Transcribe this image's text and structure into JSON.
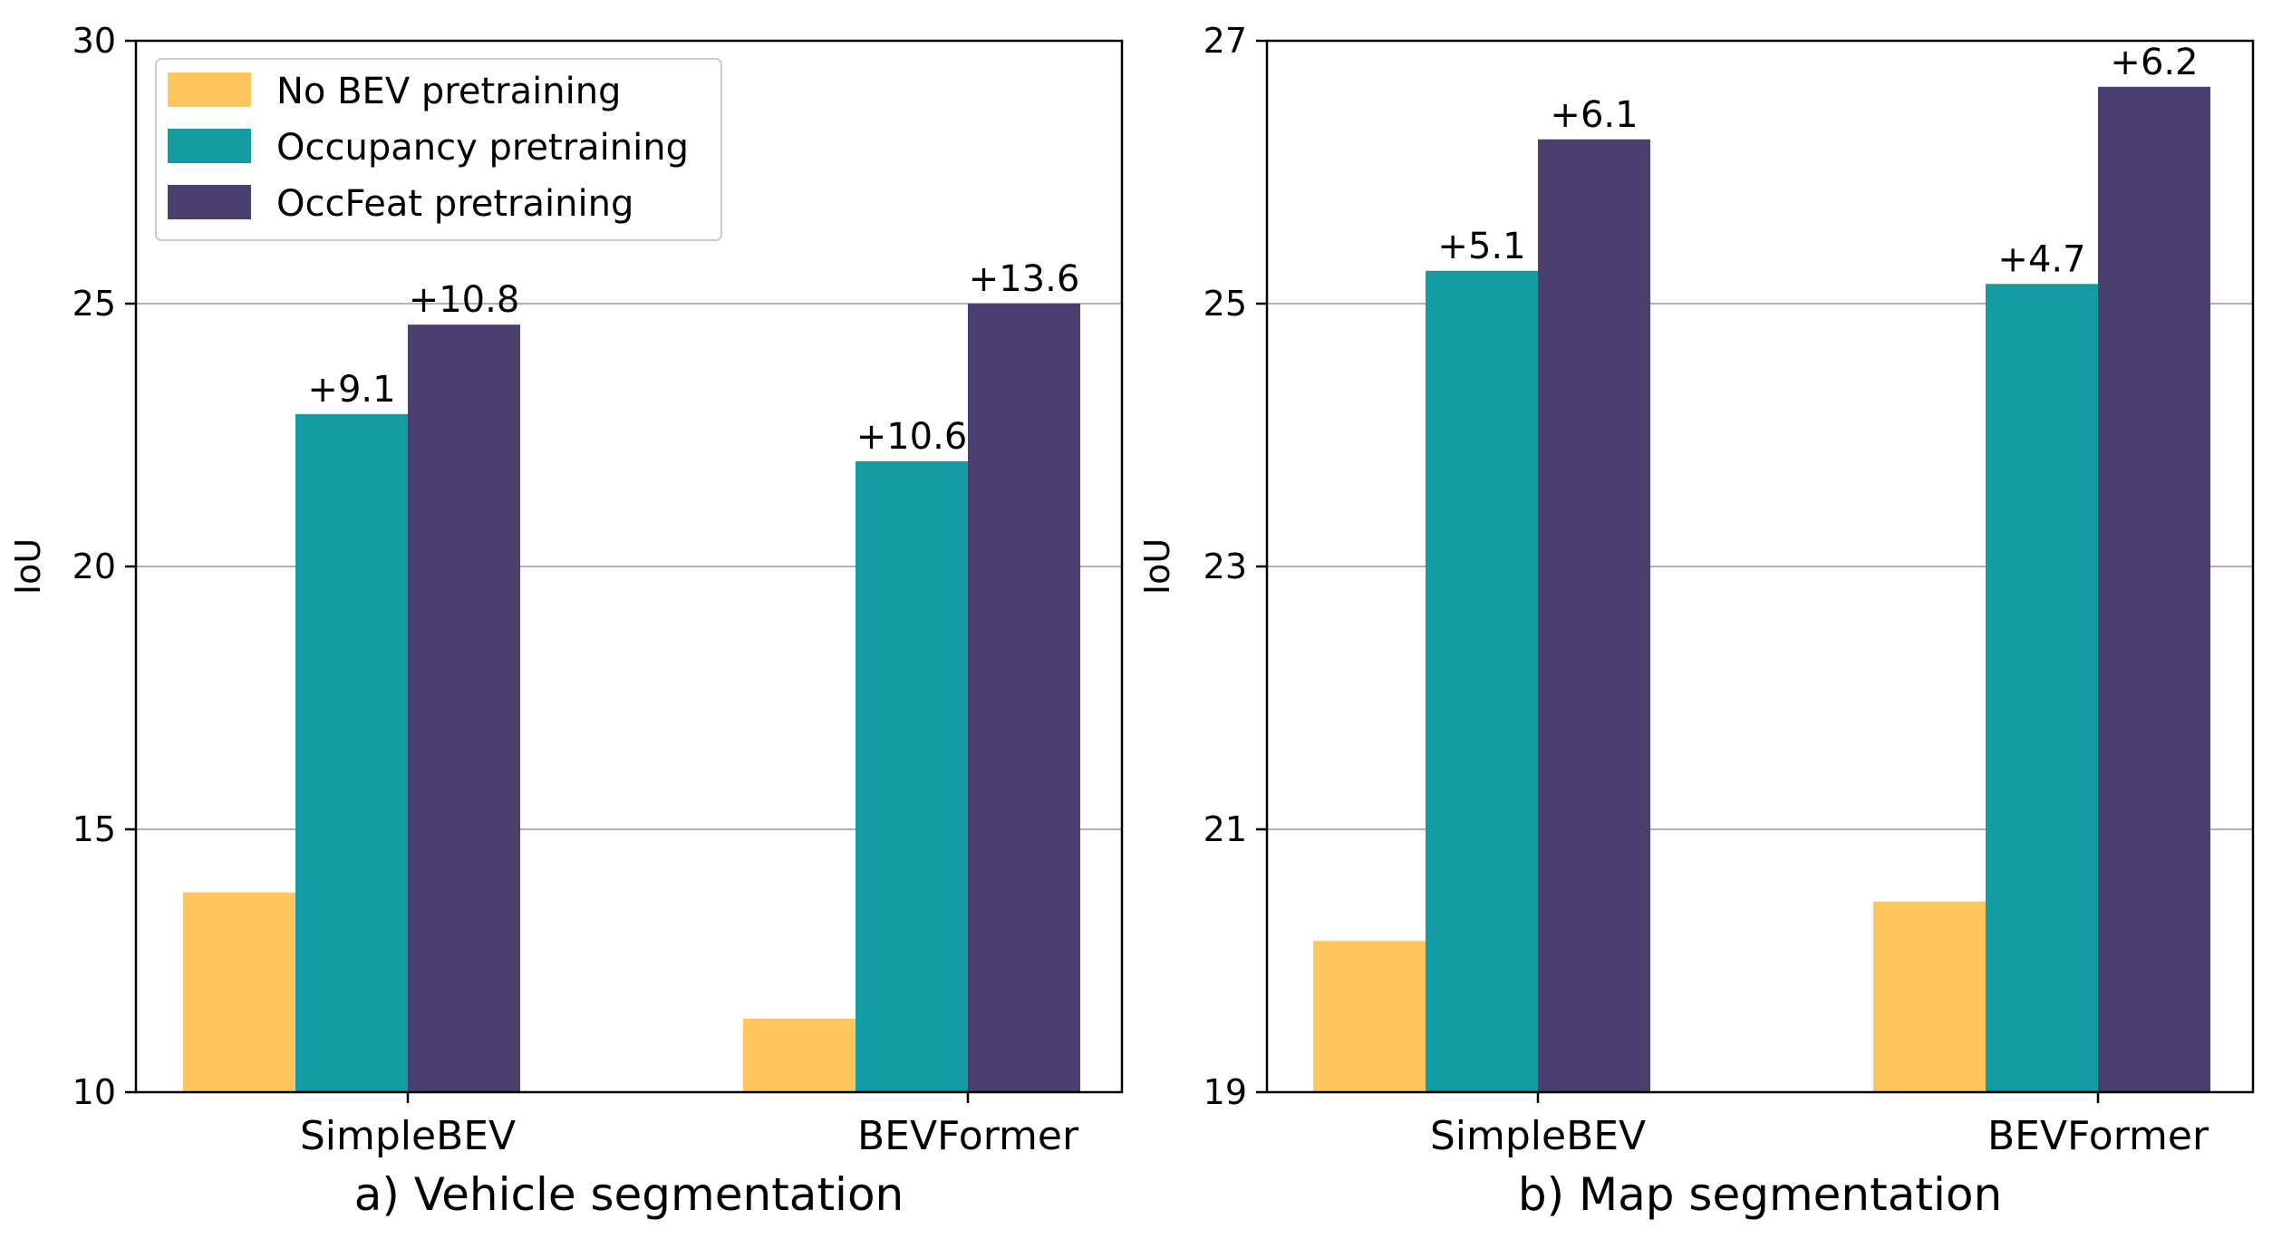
{
  "chart_data": [
    {
      "type": "bar",
      "subcaption": "a) Vehicle segmentation",
      "ylabel": "IoU",
      "ylim": [
        10,
        30
      ],
      "yticks": [
        10,
        15,
        20,
        25,
        30
      ],
      "grid": "horizontal",
      "categories": [
        "SimpleBEV",
        "BEVFormer"
      ],
      "series": [
        {
          "name": "No BEV pretraining",
          "values": [
            13.8,
            11.4
          ],
          "labels": [
            "",
            ""
          ]
        },
        {
          "name": "Occupancy pretraining",
          "values": [
            22.9,
            22.0
          ],
          "labels": [
            "+9.1",
            "+10.6"
          ]
        },
        {
          "name": "OccFeat pretraining",
          "values": [
            24.6,
            25.0
          ],
          "labels": [
            "+10.8",
            "+13.6"
          ]
        }
      ],
      "legend": "top-left"
    },
    {
      "type": "bar",
      "subcaption": "b) Map segmentation",
      "ylabel": "IoU",
      "ylim": [
        19,
        27
      ],
      "yticks": [
        19,
        21,
        23,
        25,
        27
      ],
      "grid": "horizontal",
      "categories": [
        "SimpleBEV",
        "BEVFormer"
      ],
      "series": [
        {
          "name": "No BEV pretraining",
          "values": [
            20.15,
            20.45
          ],
          "labels": [
            "",
            ""
          ]
        },
        {
          "name": "Occupancy pretraining",
          "values": [
            25.25,
            25.15
          ],
          "labels": [
            "+5.1",
            "+4.7"
          ]
        },
        {
          "name": "OccFeat pretraining",
          "values": [
            26.25,
            26.65
          ],
          "labels": [
            "+6.1",
            "+6.2"
          ]
        }
      ]
    }
  ],
  "colors": {
    "series": [
      "#fec65c",
      "#139ba4",
      "#4b3f6f"
    ],
    "grid": "#b0b0b0",
    "axis": "#000000"
  }
}
